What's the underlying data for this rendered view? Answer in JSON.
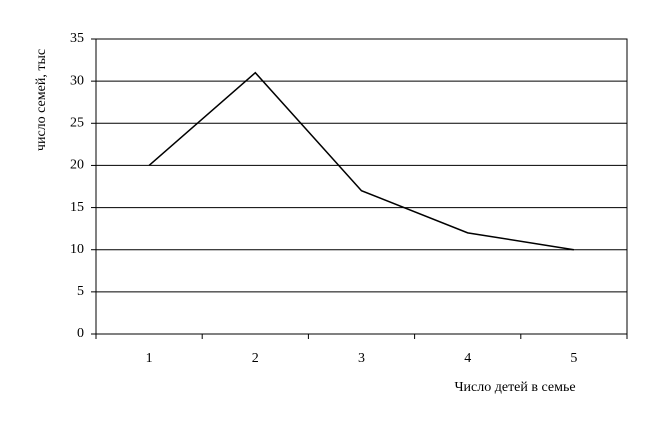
{
  "chart_data": {
    "type": "line",
    "categories": [
      "1",
      "2",
      "3",
      "4",
      "5"
    ],
    "values": [
      20,
      31,
      17,
      12,
      10
    ],
    "color": "#000000",
    "ylim": [
      0,
      35
    ],
    "yticks": [
      0,
      5,
      10,
      15,
      20,
      25,
      30,
      35
    ],
    "grid": true,
    "y_label": "число семей, тыс",
    "x_label": "Число детей в семье"
  }
}
